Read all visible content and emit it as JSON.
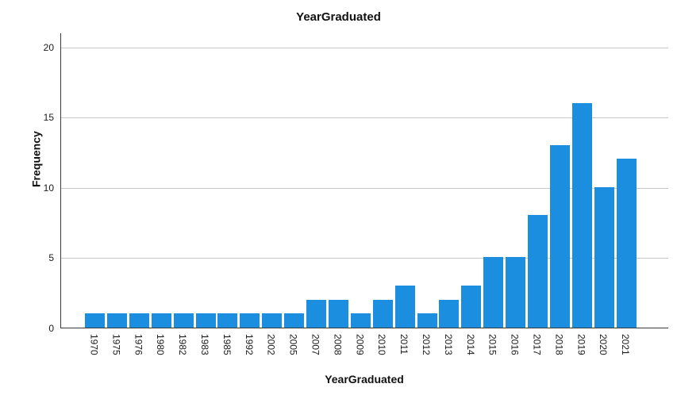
{
  "chart_data": {
    "type": "bar",
    "title": "YearGraduated",
    "xlabel": "YearGraduated",
    "ylabel": "Frequency",
    "categories": [
      "1970",
      "1975",
      "1976",
      "1980",
      "1982",
      "1983",
      "1985",
      "1992",
      "2002",
      "2005",
      "2007",
      "2008",
      "2009",
      "2010",
      "2011",
      "2012",
      "2013",
      "2014",
      "2015",
      "2016",
      "2017",
      "2018",
      "2019",
      "2020",
      "2021"
    ],
    "values": [
      1,
      1,
      1,
      1,
      1,
      1,
      1,
      1,
      1,
      1,
      2,
      2,
      1,
      2,
      3,
      1,
      2,
      3,
      5,
      5,
      8,
      13,
      16,
      10,
      12
    ],
    "yticks": [
      0,
      5,
      10,
      15,
      20
    ],
    "ylim": [
      0,
      21
    ],
    "grid": "horizontal-only",
    "legend": "none",
    "x_tick_rotation": 90,
    "bar_color": "#1B8EE0",
    "gridline_color": "#C9C9C9",
    "axis_color": "#3A3A3A",
    "background_color": "#FFFFFF"
  }
}
